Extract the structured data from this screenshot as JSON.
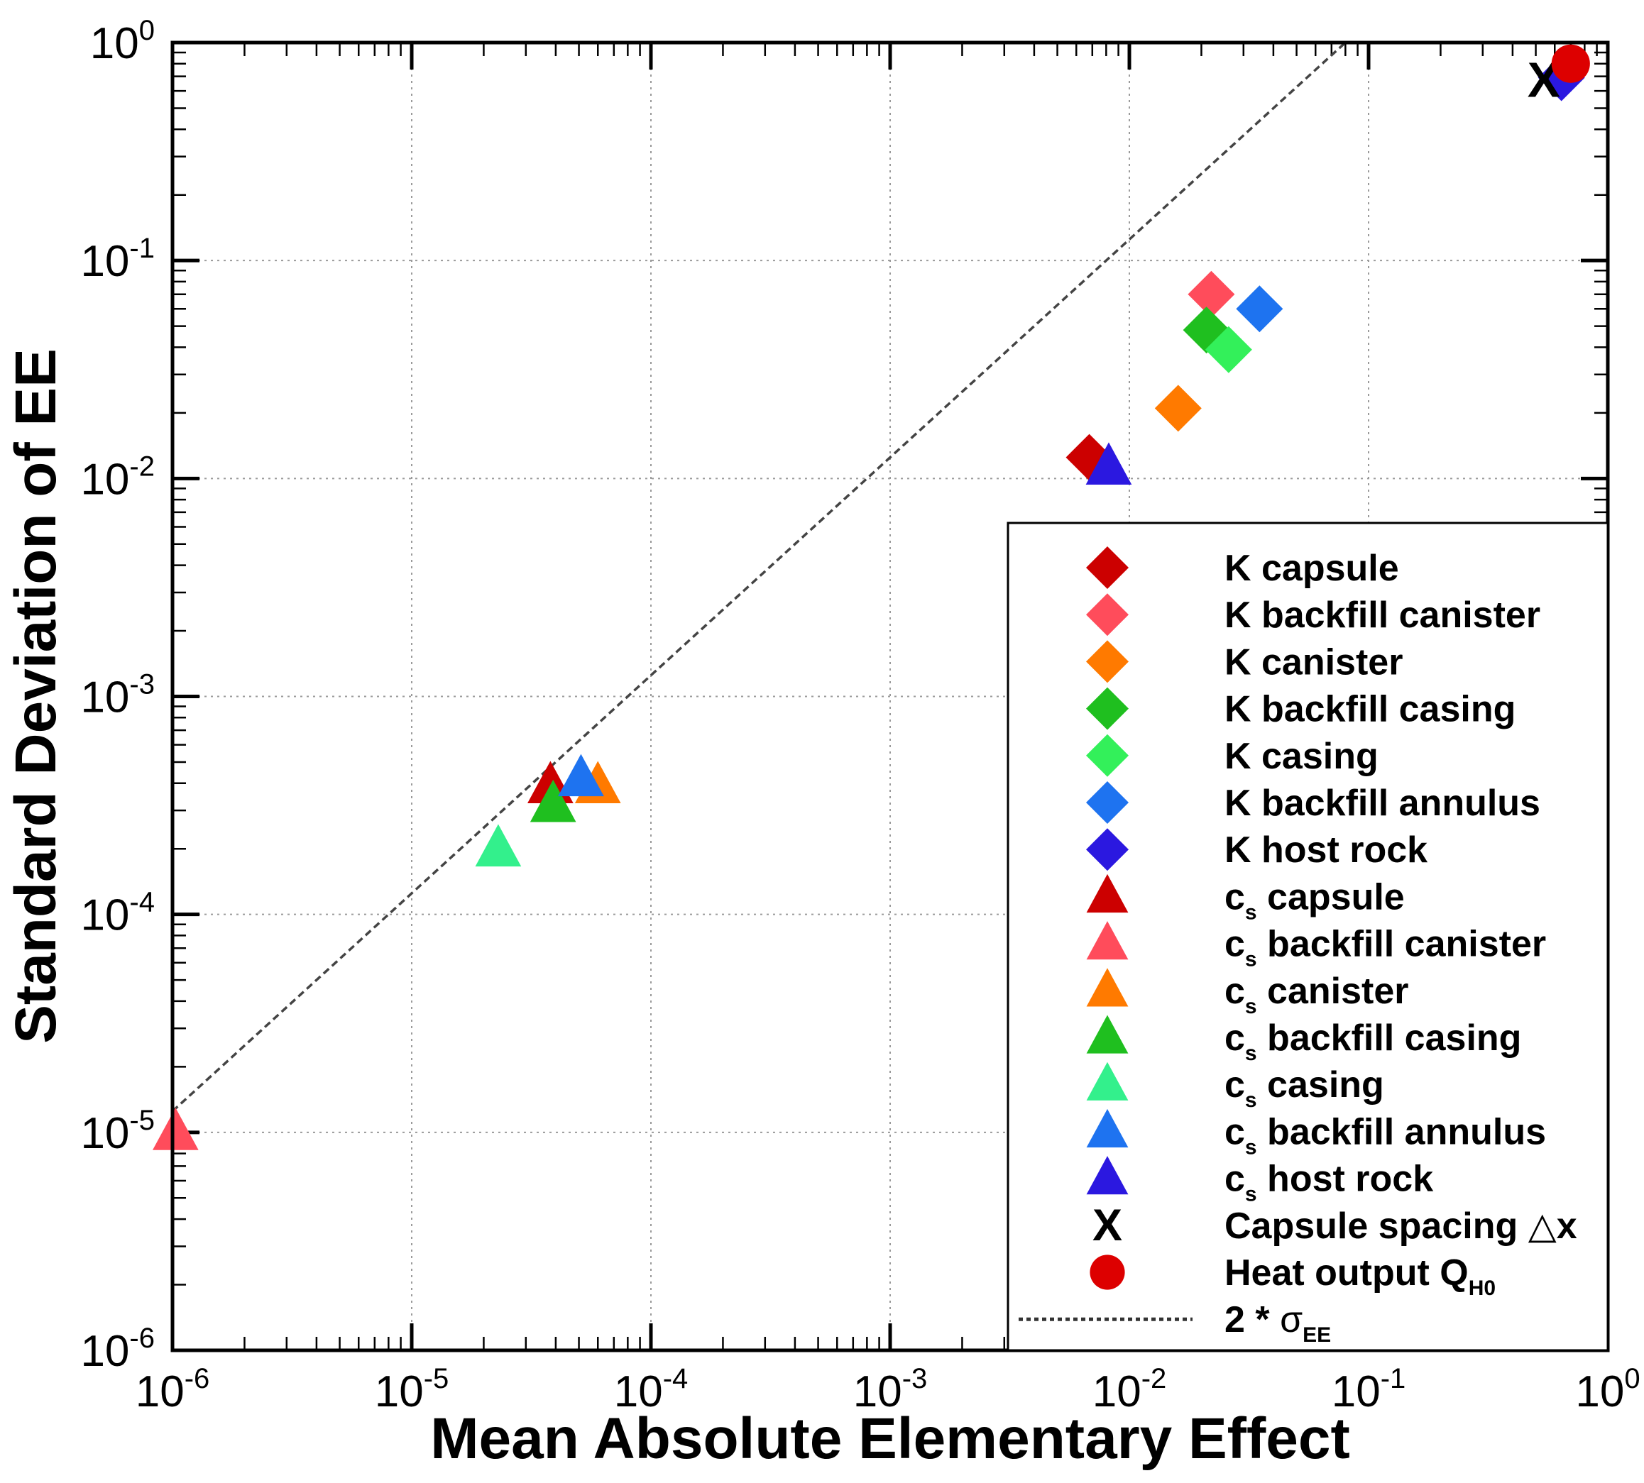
{
  "chart_data": {
    "type": "scatter",
    "xscale": "log",
    "yscale": "log",
    "xlim": [
      1e-06,
      1
    ],
    "ylim": [
      1e-06,
      1
    ],
    "grid": true,
    "xlabel": "Mean Absolute Elementary Effect",
    "ylabel": "Standard Deviation of EE",
    "ticks": [
      {
        "value": 1e-06,
        "base": "10",
        "exp": "-6"
      },
      {
        "value": 1e-05,
        "base": "10",
        "exp": "-5"
      },
      {
        "value": 0.0001,
        "base": "10",
        "exp": "-4"
      },
      {
        "value": 0.001,
        "base": "10",
        "exp": "-3"
      },
      {
        "value": 0.01,
        "base": "10",
        "exp": "-2"
      },
      {
        "value": 0.1,
        "base": "10",
        "exp": "-1"
      },
      {
        "value": 1,
        "base": "10",
        "exp": "0"
      }
    ],
    "legend_position": "lower-right",
    "series": [
      {
        "id": "k-capsule",
        "marker": "diamond",
        "color": "#cc0000",
        "label": {
          "pre": "K capsule"
        },
        "x": 0.0068,
        "y": 0.0125
      },
      {
        "id": "k-backfill-canister",
        "marker": "diamond",
        "color": "#ff4c5b",
        "label": {
          "pre": "K backfill canister"
        },
        "x": 0.022,
        "y": 0.07
      },
      {
        "id": "k-canister",
        "marker": "diamond",
        "color": "#ff7a00",
        "label": {
          "pre": "K canister"
        },
        "x": 0.016,
        "y": 0.021
      },
      {
        "id": "k-backfill-casing",
        "marker": "diamond",
        "color": "#1fbf1f",
        "label": {
          "pre": "K backfill casing"
        },
        "x": 0.021,
        "y": 0.048
      },
      {
        "id": "k-casing",
        "marker": "diamond",
        "color": "#33f05a",
        "label": {
          "pre": "K casing"
        },
        "x": 0.026,
        "y": 0.039
      },
      {
        "id": "k-backfill-annulus",
        "marker": "diamond",
        "color": "#1e73f0",
        "label": {
          "pre": "K backfill annulus"
        },
        "x": 0.035,
        "y": 0.06
      },
      {
        "id": "k-host-rock",
        "marker": "diamond",
        "color": "#2b18e0",
        "label": {
          "pre": "K host rock"
        },
        "x": 0.64,
        "y": 0.69
      },
      {
        "id": "cs-capsule",
        "marker": "triangle",
        "color": "#cc0000",
        "label": {
          "pre": "c",
          "sub": "s",
          "post": " capsule"
        },
        "x": 3.8e-05,
        "y": 0.00039
      },
      {
        "id": "cs-backfill-canister",
        "marker": "triangle",
        "color": "#ff4c5b",
        "label": {
          "pre": "c",
          "sub": "s",
          "post": " backfill canister"
        },
        "x": 1.03e-06,
        "y": 1e-05
      },
      {
        "id": "cs-canister",
        "marker": "triangle",
        "color": "#ff7a00",
        "label": {
          "pre": "c",
          "sub": "s",
          "post": " canister"
        },
        "x": 6e-05,
        "y": 0.00039
      },
      {
        "id": "cs-backfill-casing",
        "marker": "triangle",
        "color": "#1fbf1f",
        "label": {
          "pre": "c",
          "sub": "s",
          "post": " backfill casing"
        },
        "x": 3.9e-05,
        "y": 0.00032
      },
      {
        "id": "cs-casing",
        "marker": "triangle",
        "color": "#33f08c",
        "label": {
          "pre": "c",
          "sub": "s",
          "post": " casing"
        },
        "x": 2.3e-05,
        "y": 0.0002
      },
      {
        "id": "cs-backfill-annulus",
        "marker": "triangle",
        "color": "#1e73f0",
        "label": {
          "pre": "c",
          "sub": "s",
          "post": " backfill annulus"
        },
        "x": 5.1e-05,
        "y": 0.00042
      },
      {
        "id": "cs-host-rock",
        "marker": "triangle",
        "color": "#2b18e0",
        "label": {
          "pre": "c",
          "sub": "s",
          "post": " host rock"
        },
        "x": 0.0082,
        "y": 0.0113
      },
      {
        "id": "capsule-spacing",
        "marker": "x",
        "color": "#000000",
        "label": {
          "pre": "Capsule spacing ",
          "sym": "△",
          "post": "x"
        },
        "x": 0.54,
        "y": 0.67
      },
      {
        "id": "heat-output",
        "marker": "circle",
        "color": "#dd0000",
        "label": {
          "pre": "Heat output Q",
          "sub": "H0"
        },
        "x": 0.7,
        "y": 0.8
      }
    ],
    "reference_line": {
      "marker": "dotted",
      "label": {
        "pre": "2 * ",
        "sym": "σ",
        "sub": "EE"
      },
      "x": [
        1e-06,
        0.1
      ],
      "y": [
        1.25e-05,
        1.25
      ]
    }
  }
}
